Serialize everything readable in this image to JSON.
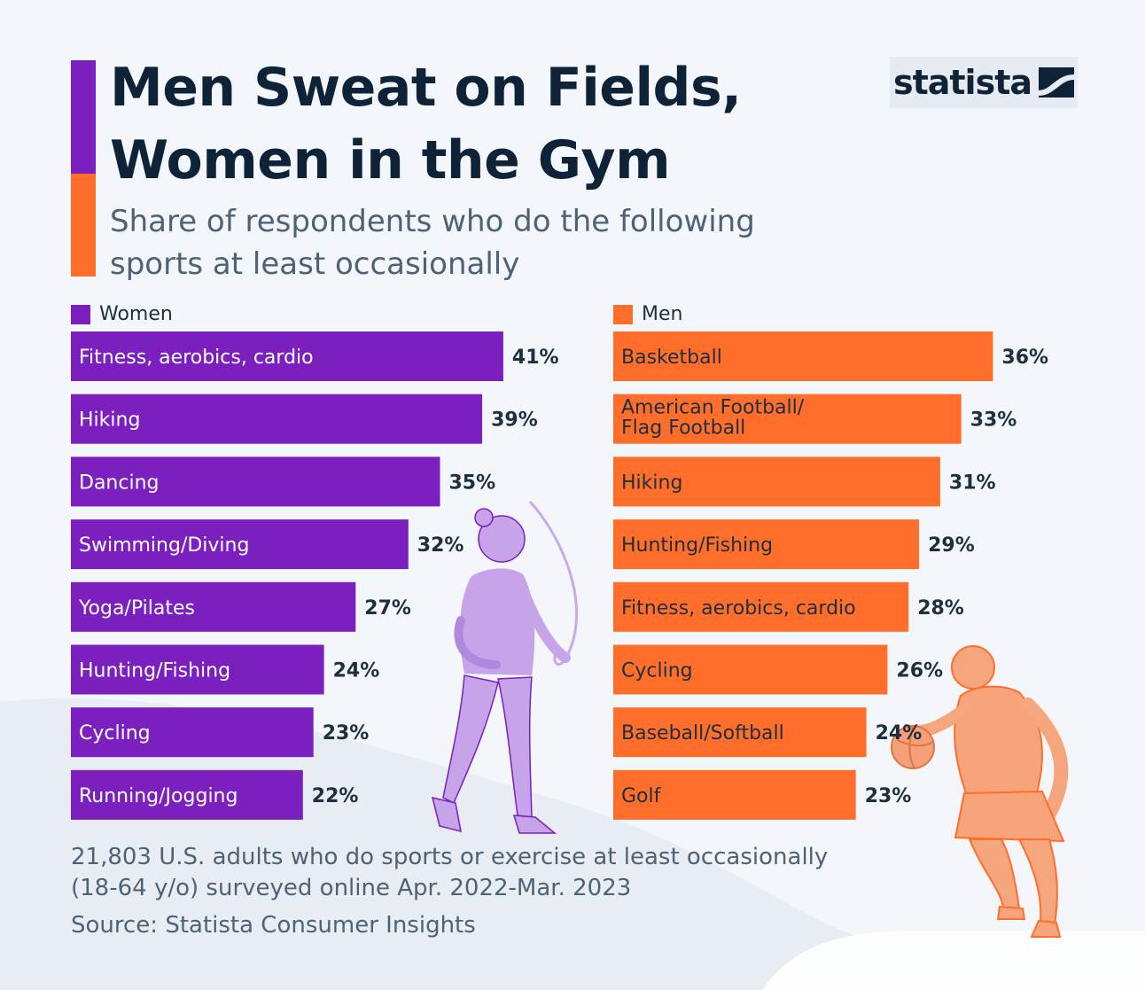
{
  "title": "Men Sweat on Fields, Women in the Gym",
  "subtitle": "Share of respondents who do the following sports at least occasionally",
  "logo": {
    "text": "statista",
    "icon": "statista-wave-icon"
  },
  "colors": {
    "women": "#7b1fbf",
    "men": "#ff6e2b",
    "text": "#0f2338"
  },
  "legend": {
    "women": "Women",
    "men": "Men"
  },
  "chart_data": [
    {
      "type": "bar",
      "orientation": "horizontal",
      "series_name": "Women",
      "categories": [
        "Fitness, aerobics, cardio",
        "Hiking",
        "Dancing",
        "Swimming/Diving",
        "Yoga/Pilates",
        "Hunting/Fishing",
        "Cycling",
        "Running/Jogging"
      ],
      "values": [
        41,
        39,
        35,
        32,
        27,
        24,
        23,
        22
      ],
      "value_labels": [
        "41%",
        "39%",
        "35%",
        "32%",
        "27%",
        "24%",
        "23%",
        "22%"
      ],
      "unit": "%"
    },
    {
      "type": "bar",
      "orientation": "horizontal",
      "series_name": "Men",
      "categories": [
        "Basketball",
        "American Football/ Flag Football",
        "Hiking",
        "Hunting/Fishing",
        "Fitness, aerobics, cardio",
        "Cycling",
        "Baseball/Softball",
        "Golf"
      ],
      "category_lines": [
        [
          "Basketball"
        ],
        [
          "American Football/",
          "Flag Football"
        ],
        [
          "Hiking"
        ],
        [
          "Hunting/Fishing"
        ],
        [
          "Fitness, aerobics, cardio"
        ],
        [
          "Cycling"
        ],
        [
          "Baseball/Softball"
        ],
        [
          "Golf"
        ]
      ],
      "values": [
        36,
        33,
        31,
        29,
        28,
        26,
        24,
        23
      ],
      "value_labels": [
        "36%",
        "33%",
        "31%",
        "29%",
        "28%",
        "26%",
        "24%",
        "23%"
      ],
      "unit": "%"
    }
  ],
  "note": "21,803 U.S. adults who do sports or exercise at least occasionally (18-64 y/o) surveyed online Apr. 2022-Mar. 2023",
  "source": "Source: Statista Consumer Insights"
}
